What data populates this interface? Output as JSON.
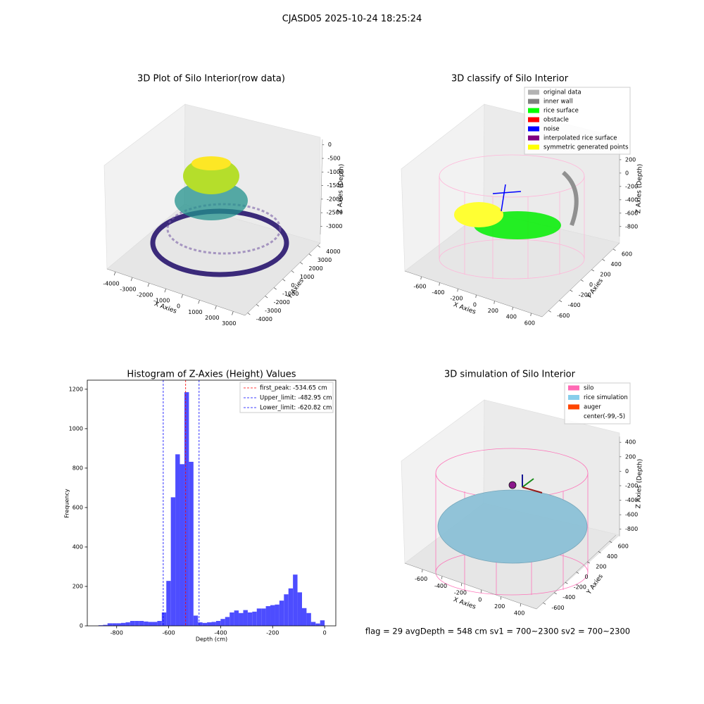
{
  "title": "CJASD05 2025-10-24 18:25:24",
  "footer": "flag = 29  avgDepth = 548 cm  sv1 = 700~2300  sv2 = 700~2300",
  "chart_data": [
    {
      "type": "scatter3d",
      "title": "3D Plot of Silo Interior(row data)",
      "xlabel": "X Axies",
      "ylabel": "Y Axies",
      "zlabel": "Z Axies (Depth)",
      "xlim": [
        -4500,
        3700
      ],
      "ylim": [
        -4300,
        4300
      ],
      "zlim": [
        -3300,
        200
      ],
      "xticks": [
        -4000,
        -3000,
        -2000,
        -1000,
        0,
        1000,
        2000,
        3000
      ],
      "yticks": [
        -4000,
        -3000,
        -2000,
        -1000,
        0,
        1000,
        2000,
        3000,
        4000
      ],
      "zticks": [
        0,
        -500,
        -1000,
        -1500,
        -2000,
        -2500,
        -3000
      ]
    },
    {
      "type": "scatter3d",
      "title": "3D classify of Silo Interior",
      "xlabel": "X Axies",
      "ylabel": "Y Axies",
      "zlabel": "Z Axies (Depth)",
      "xlim": [
        -780,
        720
      ],
      "ylim": [
        -720,
        720
      ],
      "zlim": [
        -950,
        420
      ],
      "xticks": [
        -600,
        -400,
        -200,
        0,
        200,
        400,
        600
      ],
      "yticks": [
        -600,
        -400,
        -200,
        0,
        200,
        400,
        600
      ],
      "zticks": [
        200,
        0,
        -200,
        -400,
        -600,
        -800
      ],
      "legend": [
        {
          "name": "original data",
          "color": "#b3b3b3"
        },
        {
          "name": "inner wall",
          "color": "#808080"
        },
        {
          "name": "rice surface",
          "color": "#00ff00"
        },
        {
          "name": "obstacle",
          "color": "#ff0000"
        },
        {
          "name": "noise",
          "color": "#0000ff"
        },
        {
          "name": "interpolated rice surface",
          "color": "#800080"
        },
        {
          "name": "symmetric generated points",
          "color": "#ffff00"
        }
      ]
    },
    {
      "type": "histogram",
      "title": "Histogram of Z-Axies (Height) Values",
      "xlabel": "Depth (cm)",
      "ylabel": "Frequency",
      "color": "#4d4dff",
      "bins": [
        -870,
        -852.6,
        -835.2,
        -817.8,
        -800.4,
        -783,
        -765.6,
        -748.2,
        -730.8,
        -713.4,
        -696,
        -678.6,
        -661.2,
        -643.8,
        -626.4,
        -609,
        -591.6,
        -574.2,
        -556.8,
        -539.4,
        -522,
        -504.6,
        -487.2,
        -469.8,
        -452.4,
        -435,
        -417.6,
        -400.2,
        -382.8,
        -365.4,
        -348,
        -330.6,
        -313.2,
        -295.8,
        -278.4,
        -261,
        -243.6,
        -226.2,
        -208.8,
        -191.4,
        -174,
        -156.6,
        -139.2,
        -121.8,
        -104.4,
        -87,
        -69.6,
        -52.2,
        -34.8,
        -17.4,
        0
      ],
      "values": [
        3,
        5,
        13,
        13,
        13,
        15,
        18,
        25,
        25,
        25,
        22,
        20,
        20,
        25,
        68,
        228,
        652,
        870,
        820,
        1185,
        832,
        52,
        18,
        15,
        18,
        20,
        25,
        35,
        45,
        68,
        78,
        65,
        80,
        68,
        72,
        88,
        88,
        100,
        105,
        108,
        128,
        160,
        190,
        260,
        170,
        90,
        65,
        20,
        12,
        28
      ],
      "lines": [
        {
          "label": "first_peak: -534.65 cm",
          "value": -534.65,
          "color": "#ff0000"
        },
        {
          "label": "Upper_limit: -482.95 cm",
          "value": -482.95,
          "color": "#0000ff"
        },
        {
          "label": "Lower_limit: -620.82 cm",
          "value": -620.82,
          "color": "#0000ff"
        }
      ],
      "xlim": [
        -913,
        43
      ],
      "ylim": [
        0,
        1246
      ],
      "xticks": [
        -800,
        -600,
        -400,
        -200,
        0
      ],
      "yticks": [
        0,
        200,
        400,
        600,
        800,
        1000,
        1200
      ]
    },
    {
      "type": "surface3d",
      "title": "3D simulation of Silo Interior",
      "xlabel": "X Axies",
      "ylabel": "Y Axies",
      "zlabel": "Z Axies (Depth)",
      "xlim": [
        -780,
        560
      ],
      "ylim": [
        -720,
        720
      ],
      "zlim": [
        -900,
        480
      ],
      "xticks": [
        -600,
        -400,
        -200,
        0,
        200,
        400
      ],
      "yticks": [
        -600,
        -400,
        -200,
        0,
        200,
        400,
        600
      ],
      "zticks": [
        400,
        200,
        0,
        -200,
        -400,
        -600,
        -800
      ],
      "legend": [
        {
          "name": "silo",
          "color": "#ff69b4"
        },
        {
          "name": "rice simulation",
          "color": "#87ceeb"
        },
        {
          "name": "auger",
          "color": "#ff4500"
        },
        {
          "name": "center(-99,-5)",
          "color": "#ffffff"
        }
      ]
    }
  ]
}
